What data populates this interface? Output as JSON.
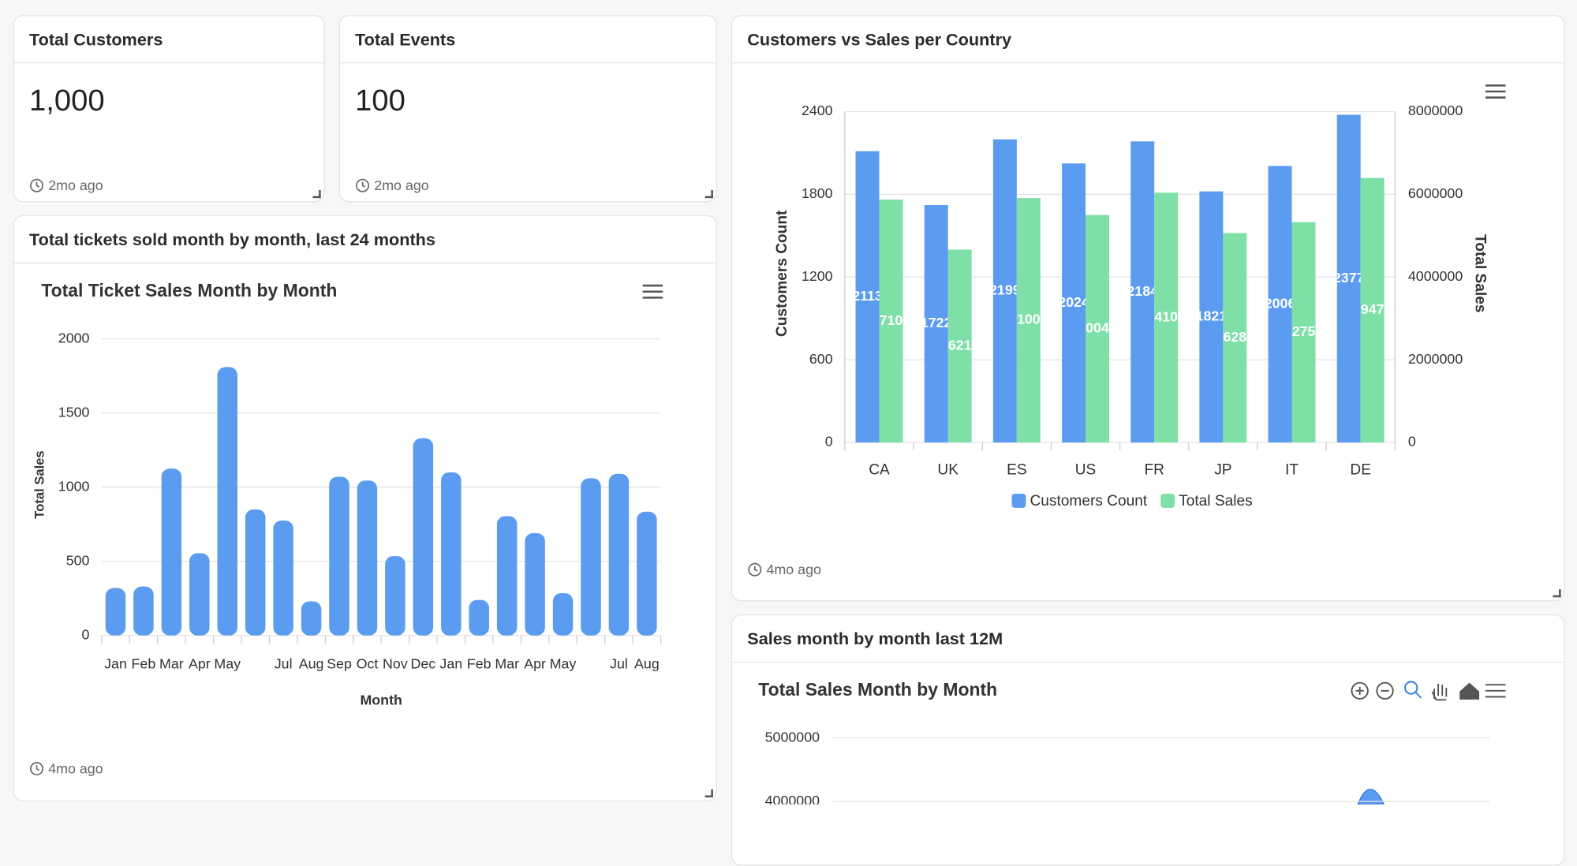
{
  "cards": [
    {
      "title": "Total Customers",
      "value": "1,000",
      "updated": "2mo ago"
    },
    {
      "title": "Total Events",
      "value": "100",
      "updated": "2mo ago"
    },
    {
      "title": "Customers vs Sales per Country",
      "updated": "4mo ago"
    },
    {
      "title": "Total tickets sold month by month, last 24 months",
      "updated": "4mo ago"
    },
    {
      "title": "Sales month by month last 12M"
    }
  ],
  "chart_data": [
    {
      "type": "bar",
      "title": "Total Ticket Sales Month by Month",
      "x_label": "Month",
      "y_label": "Total Sales",
      "categories": [
        "Jan",
        "Feb",
        "Mar",
        "Apr",
        "May",
        null,
        "Jul",
        "Aug",
        "Sep",
        "Oct",
        "Nov",
        "Dec",
        "Jan",
        "Feb",
        "Mar",
        "Apr",
        "May",
        null,
        "Jul",
        "Aug"
      ],
      "values": [
        320,
        330,
        1125,
        555,
        1810,
        850,
        775,
        230,
        1070,
        1045,
        535,
        1330,
        1100,
        240,
        805,
        690,
        285,
        1060,
        1090,
        835
      ],
      "color": "#5b9bf0",
      "ylim": [
        0,
        2000
      ],
      "yticks": [
        0,
        500,
        1000,
        1500,
        2000
      ],
      "grid": true
    },
    {
      "type": "bar",
      "y_label": "Customers Count",
      "y2_label": "Total Sales",
      "categories": [
        "CA",
        "UK",
        "ES",
        "US",
        "FR",
        "JP",
        "IT",
        "DE"
      ],
      "series": [
        {
          "name": "Customers Count",
          "color": "#5b9bf0",
          "values": [
            2113,
            1722,
            2199,
            2024,
            2184,
            1821,
            2006,
            2377
          ]
        },
        {
          "name": "Total Sales",
          "color": "#7ee0a6",
          "axis": "y2",
          "values": [
            5871000,
            4662100,
            5910000,
            5500400,
            6041000,
            5062800,
            5327500,
            6394700
          ]
        }
      ],
      "ylim": [
        0,
        2400
      ],
      "yticks": [
        0,
        600,
        1200,
        1800,
        2400
      ],
      "y2lim": [
        0,
        8000000
      ],
      "y2ticks": [
        0,
        2000000,
        4000000,
        6000000,
        8000000
      ],
      "grid": true
    },
    {
      "type": "area",
      "title": "Total Sales Month by Month",
      "ylim": [
        4000000,
        5000000
      ],
      "yticks": [
        4000000,
        5000000
      ],
      "grid": true
    }
  ]
}
